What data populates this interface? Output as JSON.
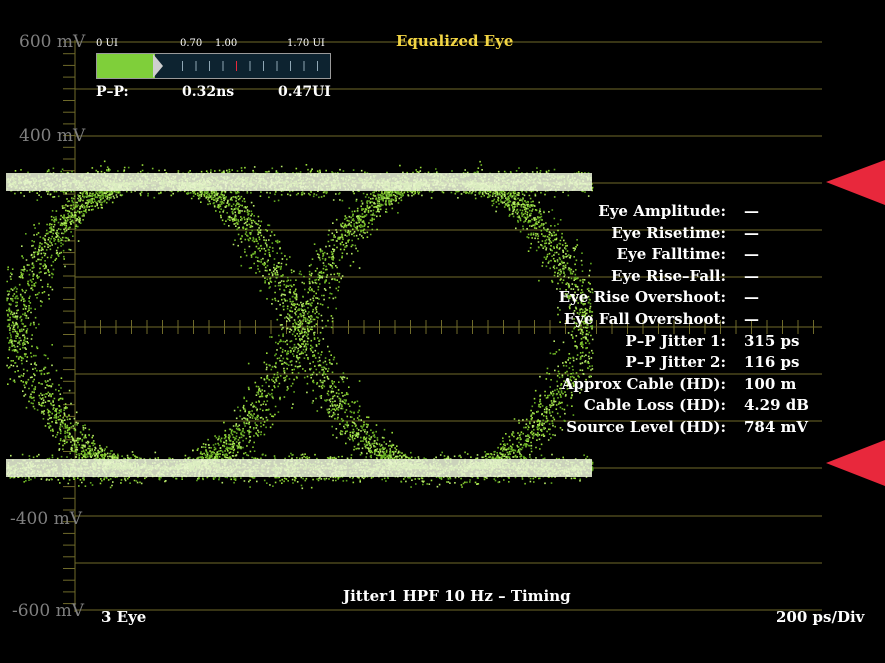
{
  "scope": {
    "title": "Equalized Eye",
    "footer_left": "3 Eye",
    "footer_center": "Jitter1 HPF 10 Hz – Timing",
    "footer_right": "200 ps/Div",
    "voltage_labels": [
      "600 mV",
      "400 mV",
      "-400 mV",
      "-600 mV"
    ],
    "colors": {
      "trace": "#9be03a",
      "trace_core": "#eef7dc",
      "marker": "#e8283c",
      "title": "#f2d544",
      "grid": "#6f6a2a"
    }
  },
  "jitter_meter": {
    "ticks": [
      "0 UI",
      "0.70",
      "1.00",
      "1.70 UI"
    ],
    "fill_ui": 0.47,
    "range_ui": 1.9,
    "pp_label": "P–P:",
    "pp_ns": "0.32ns",
    "pp_ui": "0.47UI"
  },
  "measurements": [
    {
      "label": "Eye Amplitude:",
      "value": "—"
    },
    {
      "label": "Eye Risetime:",
      "value": "—"
    },
    {
      "label": "Eye Falltime:",
      "value": "—"
    },
    {
      "label": "Eye Rise–Fall:",
      "value": "—"
    },
    {
      "label": "Eye Rise Overshoot:",
      "value": "—"
    },
    {
      "label": "Eye Fall Overshoot:",
      "value": "—"
    },
    {
      "label": "P–P Jitter 1:",
      "value": "315 ps"
    },
    {
      "label": "P–P Jitter 2:",
      "value": "116 ps"
    },
    {
      "label": "Approx Cable (HD):",
      "value": "100 m"
    },
    {
      "label": "Cable Loss (HD):",
      "value": "4.29 dB"
    },
    {
      "label": "Source Level (HD):",
      "value": "784 mV"
    }
  ]
}
